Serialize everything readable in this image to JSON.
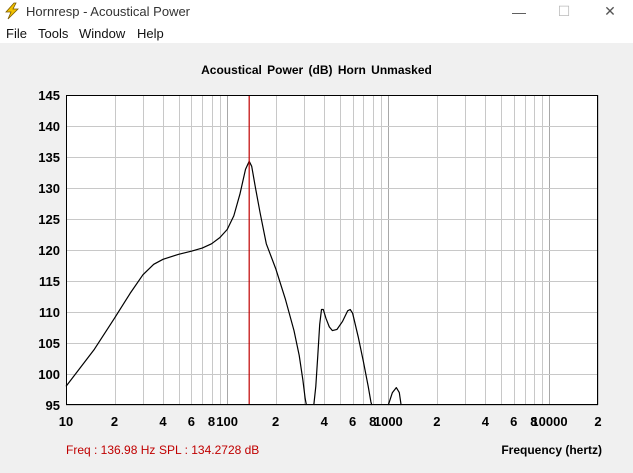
{
  "window": {
    "title": "Hornresp - Acoustical Power",
    "minimize": "—",
    "maximize": "☐",
    "close": "✕"
  },
  "menu": {
    "items": [
      "File",
      "Tools",
      "Window",
      "Help"
    ]
  },
  "status": {
    "freq": "Freq : 136.98 Hz",
    "spl": "SPL : 134.2728 dB"
  },
  "colors": {
    "cursor": "#c00000",
    "curve": "#000000",
    "grid": "#c8c8c8"
  },
  "chart_data": {
    "type": "line",
    "title": "Acoustical Power (dB)    Horn    Unmasked",
    "xlabel": "Frequency (hertz)",
    "ylabel": "",
    "x_scale": "log",
    "xlim": [
      10,
      20000
    ],
    "ylim": [
      95,
      145
    ],
    "y_ticks": [
      95,
      100,
      105,
      110,
      115,
      120,
      125,
      130,
      135,
      140,
      145
    ],
    "x_tick_labels": [
      {
        "x": 10,
        "label": "10"
      },
      {
        "x": 20,
        "label": "2"
      },
      {
        "x": 40,
        "label": "4"
      },
      {
        "x": 60,
        "label": "6"
      },
      {
        "x": 80,
        "label": "8"
      },
      {
        "x": 100,
        "label": "100"
      },
      {
        "x": 200,
        "label": "2"
      },
      {
        "x": 400,
        "label": "4"
      },
      {
        "x": 600,
        "label": "6"
      },
      {
        "x": 800,
        "label": "8"
      },
      {
        "x": 1000,
        "label": "1000"
      },
      {
        "x": 2000,
        "label": "2"
      },
      {
        "x": 4000,
        "label": "4"
      },
      {
        "x": 6000,
        "label": "6"
      },
      {
        "x": 8000,
        "label": "8"
      },
      {
        "x": 10000,
        "label": "10000"
      },
      {
        "x": 20000,
        "label": "2"
      }
    ],
    "grid": true,
    "cursor_x": 136.98,
    "series": [
      {
        "segments": [
          [
            [
              10,
              98
            ],
            [
              15,
              104
            ],
            [
              20,
              109
            ],
            [
              25,
              113
            ],
            [
              30,
              116
            ],
            [
              35,
              117.7
            ],
            [
              40,
              118.5
            ],
            [
              50,
              119.3
            ],
            [
              60,
              119.8
            ],
            [
              70,
              120.3
            ],
            [
              80,
              121
            ],
            [
              90,
              122
            ],
            [
              100,
              123.3
            ],
            [
              110,
              125.5
            ],
            [
              120,
              129
            ],
            [
              130,
              133
            ],
            [
              137,
              134.3
            ],
            [
              142,
              133.5
            ],
            [
              150,
              130
            ],
            [
              160,
              126
            ],
            [
              175,
              121
            ],
            [
              200,
              117
            ],
            [
              230,
              112
            ],
            [
              260,
              107
            ],
            [
              280,
              103
            ],
            [
              295,
              99
            ],
            [
              305,
              96
            ],
            [
              310,
              95
            ]
          ],
          [
            [
              345,
              95
            ],
            [
              355,
              98
            ],
            [
              365,
              103
            ],
            [
              375,
              108
            ],
            [
              385,
              110.4
            ],
            [
              395,
              110.4
            ],
            [
              410,
              109
            ],
            [
              430,
              107.6
            ],
            [
              450,
              107
            ],
            [
              480,
              107.2
            ],
            [
              520,
              108.5
            ],
            [
              560,
              110.2
            ],
            [
              580,
              110.4
            ],
            [
              600,
              109.8
            ],
            [
              650,
              106
            ],
            [
              700,
              102
            ],
            [
              750,
              98
            ],
            [
              780,
              95.5
            ],
            [
              790,
              95
            ]
          ],
          [
            [
              1000,
              95
            ],
            [
              1060,
              97
            ],
            [
              1120,
              97.8
            ],
            [
              1170,
              97
            ],
            [
              1200,
              95
            ]
          ]
        ]
      }
    ]
  }
}
